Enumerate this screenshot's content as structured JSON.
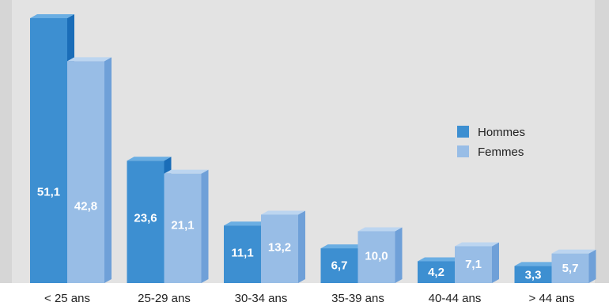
{
  "chart_data": {
    "type": "bar",
    "categories": [
      "< 25 ans",
      "25-29 ans",
      "30-34 ans",
      "35-39 ans",
      "40-44 ans",
      "> 44 ans"
    ],
    "series": [
      {
        "name": "Hommes",
        "values": [
          51.1,
          23.6,
          11.1,
          6.7,
          4.2,
          3.3
        ],
        "labels": [
          "51,1",
          "23,6",
          "11,1",
          "6,7",
          "4,2",
          "3,3"
        ],
        "color": "#3d8fd1",
        "side_color": "#1a6db8",
        "top_color": "#6aaee3"
      },
      {
        "name": "Femmes",
        "values": [
          42.8,
          21.1,
          13.2,
          10.0,
          7.1,
          5.7
        ],
        "labels": [
          "42,8",
          "21,1",
          "13,2",
          "10,0",
          "7,1",
          "5,7"
        ],
        "color": "#98bde6",
        "side_color": "#6fa0d8",
        "top_color": "#bcd5f0"
      }
    ],
    "ylim": [
      0,
      51.1
    ],
    "legend_position": "right",
    "grid": false,
    "background_color": "#e3e3e3"
  }
}
